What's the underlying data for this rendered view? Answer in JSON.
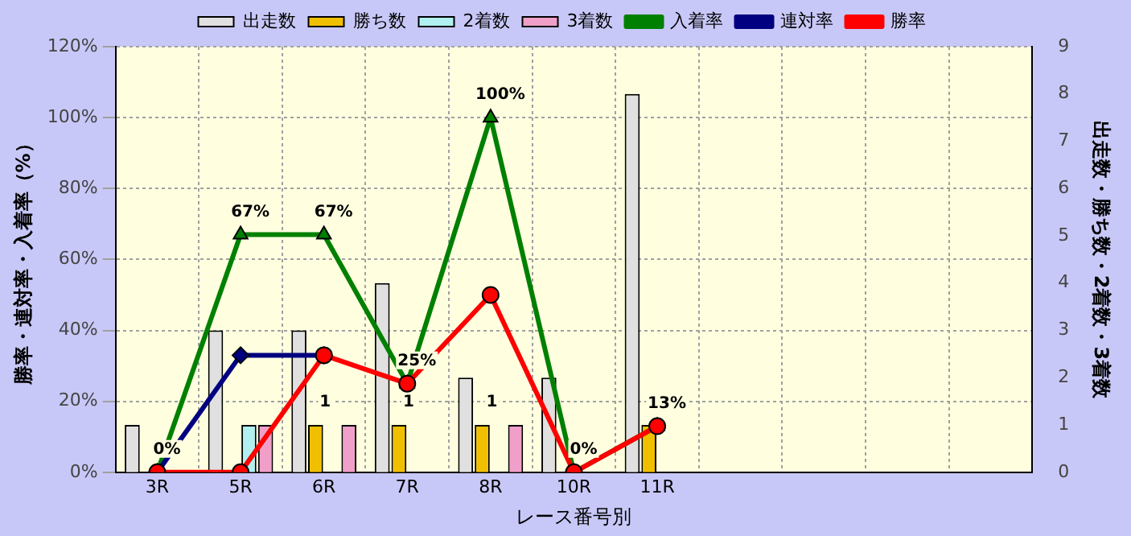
{
  "chart_data": {
    "type": "bar",
    "xlabel": "レース番号別",
    "ylabel": "勝率・連対率・入着率（%）",
    "y2label": "出走数・勝ち数・2着数・3着数",
    "categories": [
      "3R",
      "5R",
      "6R",
      "7R",
      "8R",
      "10R",
      "11R",
      null,
      null,
      null,
      null
    ],
    "series": [
      {
        "name": "出走数",
        "axis": "y2",
        "color": "#e0e0e0",
        "values": [
          1,
          3,
          3,
          4,
          2,
          2,
          8,
          null,
          null,
          null,
          null
        ]
      },
      {
        "name": "勝ち数",
        "axis": "y2",
        "color": "#f0c000",
        "values": [
          0,
          0,
          1,
          1,
          1,
          0,
          1,
          null,
          null,
          null,
          null
        ],
        "value_labels": [
          null,
          null,
          "1",
          "1",
          "1",
          null,
          null,
          null,
          null,
          null,
          null
        ]
      },
      {
        "name": "2着数",
        "axis": "y2",
        "color": "#b0f0f0",
        "values": [
          0,
          1,
          0,
          0,
          0,
          0,
          0,
          null,
          null,
          null,
          null
        ]
      },
      {
        "name": "3着数",
        "axis": "y2",
        "color": "#f0a0c8",
        "values": [
          0,
          1,
          1,
          0,
          1,
          0,
          0,
          null,
          null,
          null,
          null
        ]
      },
      {
        "name": "入着率",
        "type": "line",
        "color": "#008000",
        "marker": "triangle",
        "values": [
          0,
          67,
          67,
          25,
          100,
          0,
          13,
          null,
          null,
          null,
          null
        ],
        "value_labels": [
          "0%",
          "67%",
          "67%",
          "25%",
          "100%",
          "0%",
          "13%",
          null,
          null,
          null,
          null
        ]
      },
      {
        "name": "連対率",
        "type": "line",
        "color": "#000080",
        "marker": "diamond",
        "values": [
          0,
          33,
          33,
          null,
          null,
          null,
          null,
          null,
          null,
          null,
          null
        ]
      },
      {
        "name": "勝率",
        "type": "line",
        "color": "#ff0000",
        "marker": "circle",
        "values": [
          0,
          0,
          33,
          25,
          50,
          0,
          13,
          null,
          null,
          null,
          null
        ]
      }
    ],
    "ylim": [
      0,
      120
    ],
    "yticks": [
      {
        "value": 0,
        "label": "0%"
      },
      {
        "value": 20,
        "label": "20%"
      },
      {
        "value": 40,
        "label": "40%"
      },
      {
        "value": 60,
        "label": "60%"
      },
      {
        "value": 80,
        "label": "80%"
      },
      {
        "value": 100,
        "label": "100%"
      },
      {
        "value": 120,
        "label": "120%"
      }
    ],
    "y2lim": [
      0,
      9
    ],
    "y2ticks": [
      0,
      1,
      2,
      3,
      4,
      5,
      6,
      7,
      8,
      9
    ],
    "grid": true,
    "legend": "top"
  }
}
